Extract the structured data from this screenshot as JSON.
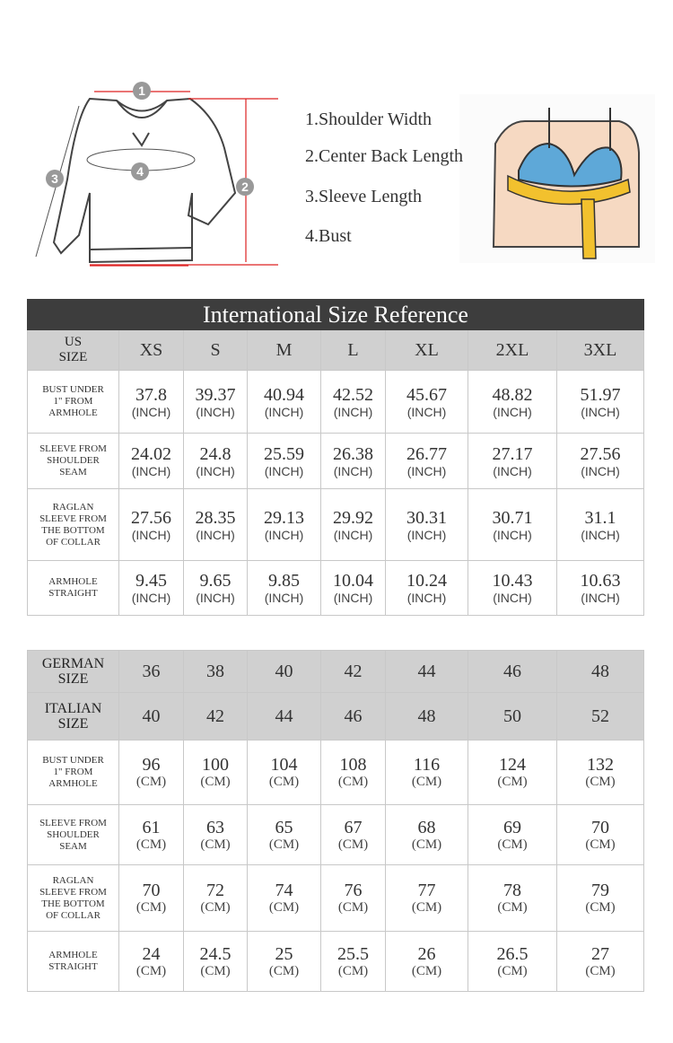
{
  "diagram": {
    "markers": [
      "1",
      "2",
      "3",
      "4"
    ],
    "legend": [
      "1.Shoulder Width",
      "2.Center Back Length",
      "3.Sleeve Length",
      "4.Bust"
    ]
  },
  "table_inch": {
    "title": "International Size Reference",
    "header_label": [
      "US",
      "SIZE"
    ],
    "sizes": [
      "XS",
      "S",
      "M",
      "L",
      "XL",
      "2XL",
      "3XL"
    ],
    "unit": "(INCH)",
    "rows": [
      {
        "label": [
          "BUST UNDER",
          "1\" FROM",
          "ARMHOLE"
        ],
        "values": [
          37.8,
          39.37,
          40.94,
          42.52,
          45.67,
          48.82,
          51.97
        ]
      },
      {
        "label": [
          "SLEEVE FROM",
          "SHOULDER",
          "SEAM"
        ],
        "values": [
          24.02,
          24.8,
          25.59,
          26.38,
          26.77,
          27.17,
          27.56
        ]
      },
      {
        "label": [
          "RAGLAN",
          "SLEEVE FROM",
          "THE BOTTOM",
          "OF COLLAR"
        ],
        "values": [
          27.56,
          28.35,
          29.13,
          29.92,
          30.31,
          30.71,
          31.1
        ]
      },
      {
        "label": [
          "ARMHOLE",
          "STRAIGHT"
        ],
        "values": [
          9.45,
          9.65,
          9.85,
          10.04,
          10.24,
          10.43,
          10.63
        ]
      }
    ]
  },
  "table_cm": {
    "german": {
      "label": [
        "GERMAN",
        "SIZE"
      ],
      "values": [
        36,
        38,
        40,
        42,
        44,
        46,
        48
      ]
    },
    "italian": {
      "label": [
        "ITALIAN",
        "SIZE"
      ],
      "values": [
        40,
        42,
        44,
        46,
        48,
        50,
        52
      ]
    },
    "unit": "(CM)",
    "rows": [
      {
        "label": [
          "BUST UNDER",
          "1\" FROM",
          "ARMHOLE"
        ],
        "values": [
          96,
          100,
          104,
          108,
          116,
          124,
          132
        ]
      },
      {
        "label": [
          "SLEEVE FROM",
          "SHOULDER",
          "SEAM"
        ],
        "values": [
          61,
          63,
          65,
          67,
          68,
          69,
          70
        ]
      },
      {
        "label": [
          "RAGLAN",
          "SLEEVE FROM",
          "THE BOTTOM",
          "OF COLLAR"
        ],
        "values": [
          70,
          72,
          74,
          76,
          77,
          78,
          79
        ]
      },
      {
        "label": [
          "ARMHOLE",
          "STRAIGHT"
        ],
        "values": [
          24,
          24.5,
          25,
          25.5,
          26,
          26.5,
          27
        ]
      }
    ]
  }
}
